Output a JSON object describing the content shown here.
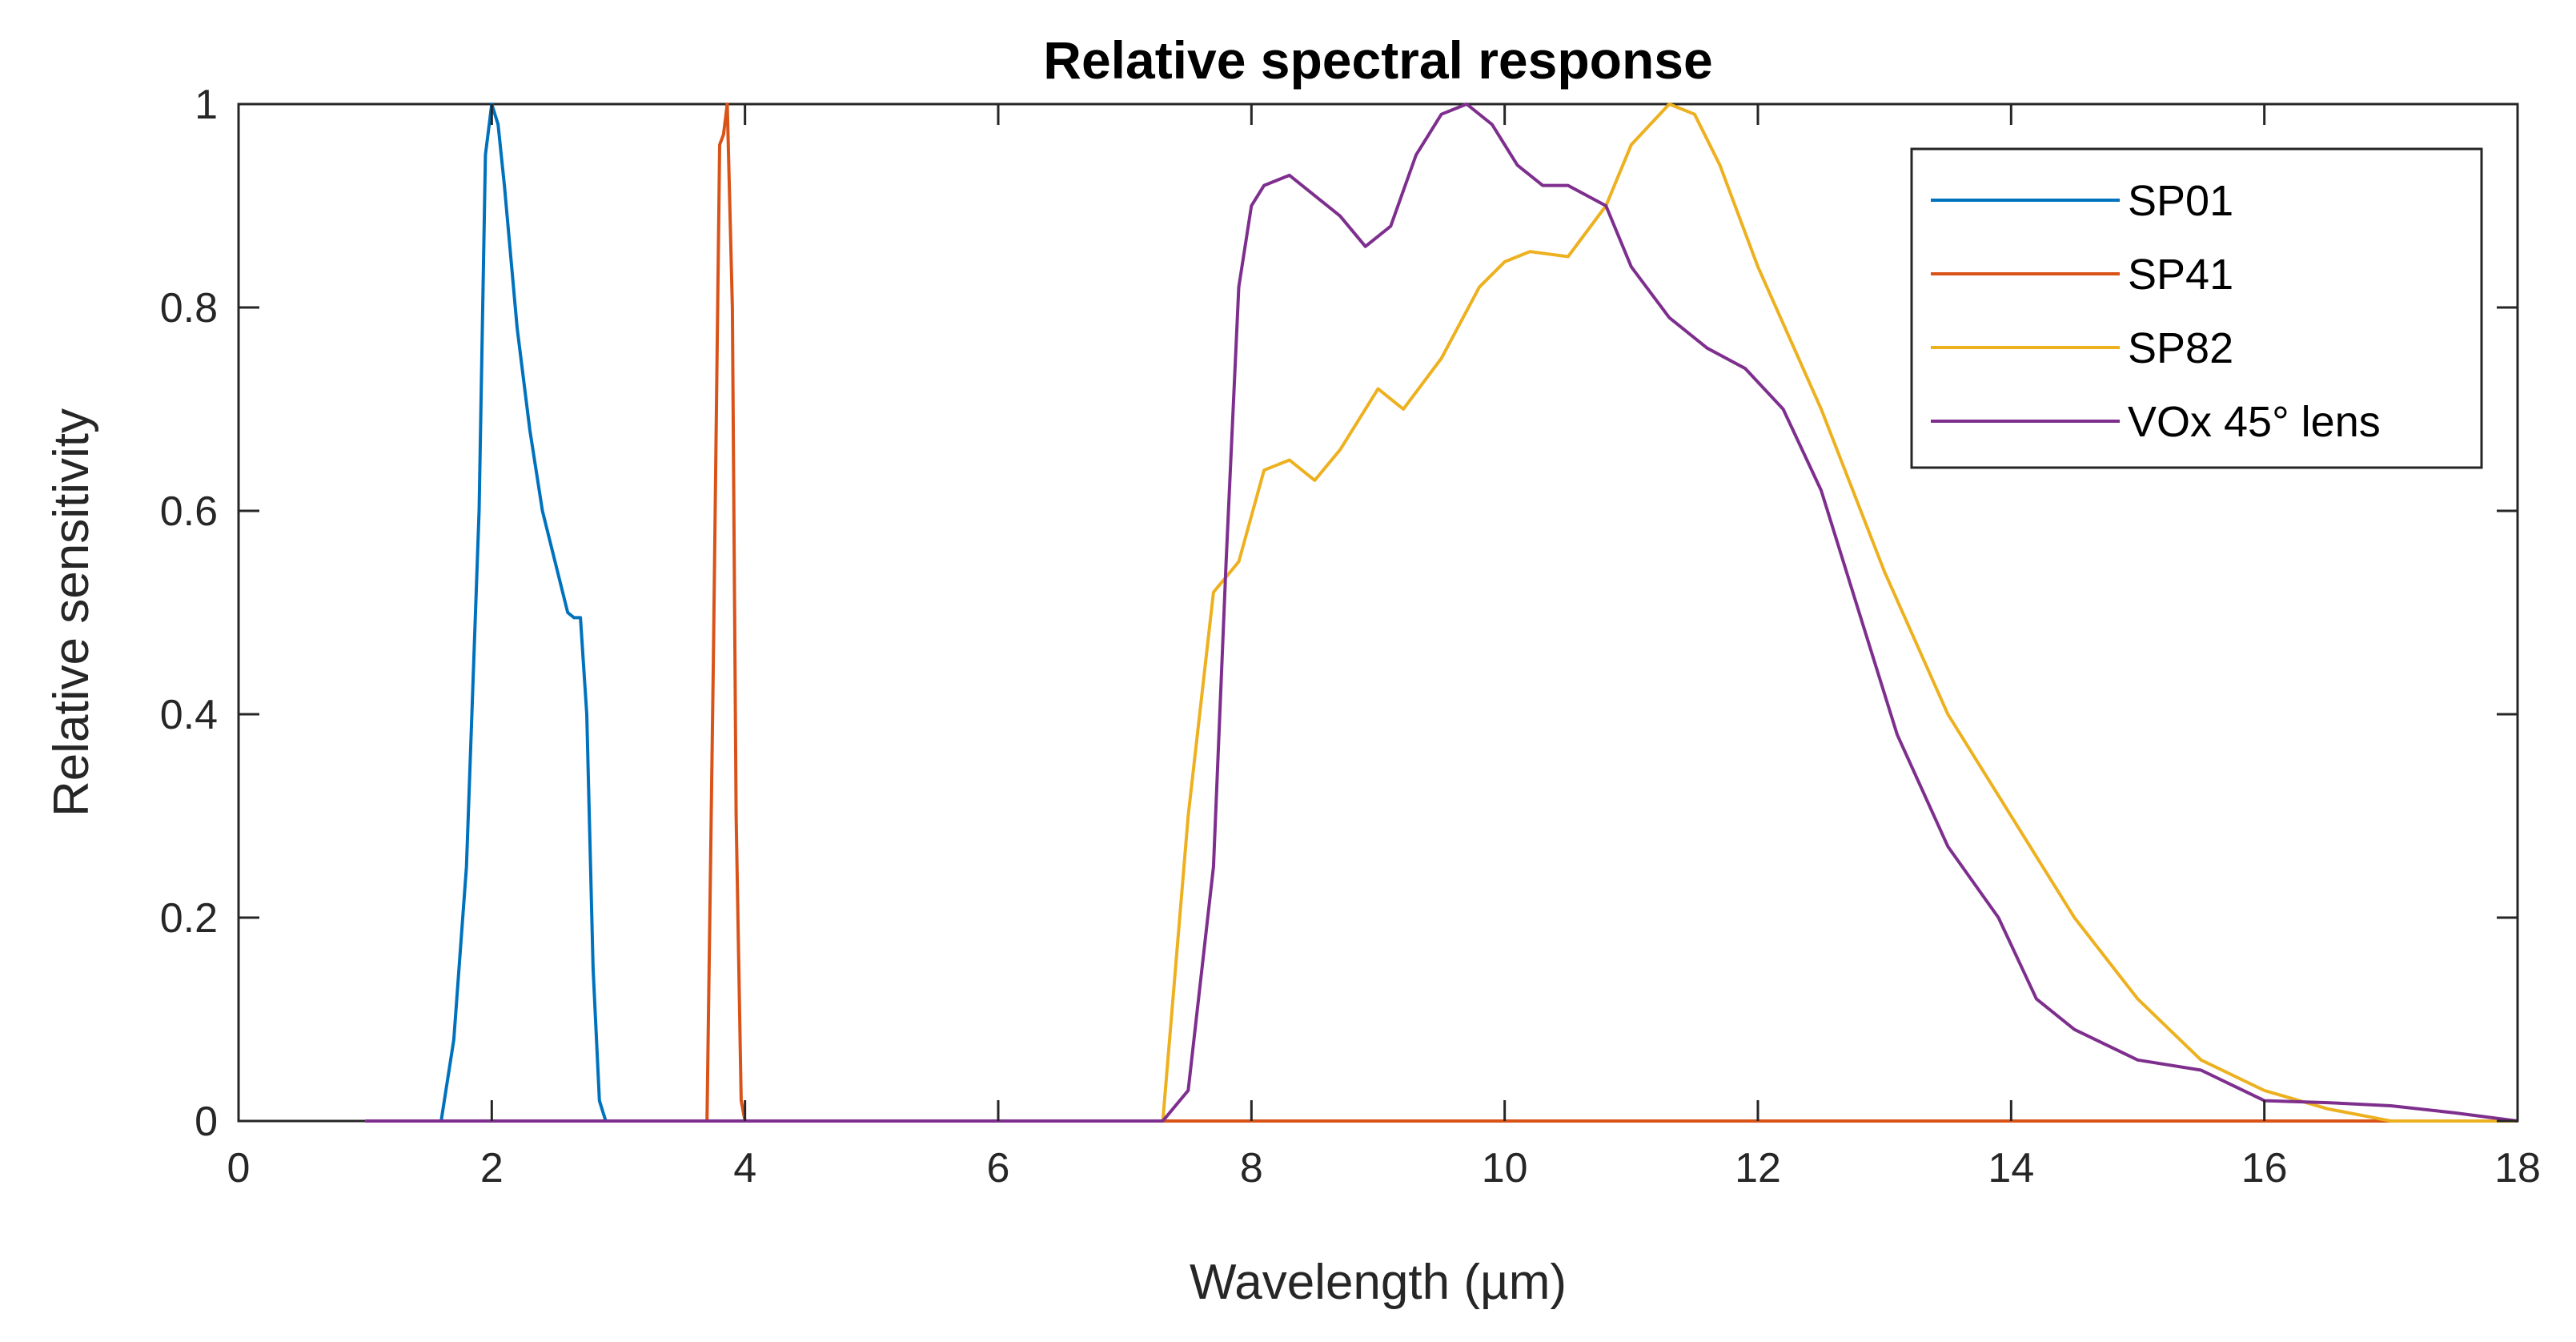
{
  "chart_data": {
    "type": "line",
    "title": "Relative spectral response",
    "xlabel": "Wavelength (µm)",
    "ylabel": "Relative sensitivity",
    "xlim": [
      0,
      18
    ],
    "ylim": [
      0,
      1
    ],
    "xticks": [
      0,
      2,
      4,
      6,
      8,
      10,
      12,
      14,
      16,
      18
    ],
    "yticks": [
      0,
      0.2,
      0.4,
      0.6,
      0.8,
      1
    ],
    "xtick_labels": [
      "0",
      "2",
      "4",
      "6",
      "8",
      "10",
      "12",
      "14",
      "16",
      "18"
    ],
    "ytick_labels": [
      "0",
      "0.2",
      "0.4",
      "0.6",
      "0.8",
      "1"
    ],
    "grid": false,
    "legend_position": "top-right",
    "series": [
      {
        "name": "SP01",
        "color": "#0072BD",
        "x": [
          1.0,
          1.6,
          1.7,
          1.8,
          1.9,
          1.95,
          2.0,
          2.05,
          2.1,
          2.2,
          2.3,
          2.4,
          2.5,
          2.6,
          2.65,
          2.7,
          2.75,
          2.8,
          2.85,
          2.9,
          3.0
        ],
        "y": [
          0,
          0,
          0.08,
          0.25,
          0.6,
          0.95,
          1.0,
          0.98,
          0.92,
          0.78,
          0.68,
          0.6,
          0.55,
          0.5,
          0.495,
          0.495,
          0.4,
          0.15,
          0.02,
          0.0,
          0
        ]
      },
      {
        "name": "SP41",
        "color": "#D95319",
        "x": [
          1.0,
          3.7,
          3.75,
          3.8,
          3.83,
          3.86,
          3.9,
          3.93,
          3.97,
          4.0,
          18.0
        ],
        "y": [
          0,
          0,
          0.45,
          0.96,
          0.97,
          1.0,
          0.8,
          0.3,
          0.02,
          0,
          0
        ]
      },
      {
        "name": "SP82",
        "color": "#EDB120",
        "x": [
          1.0,
          7.3,
          7.5,
          7.7,
          7.9,
          8.1,
          8.3,
          8.5,
          8.7,
          9.0,
          9.2,
          9.5,
          9.8,
          10.0,
          10.2,
          10.5,
          10.8,
          11.0,
          11.3,
          11.5,
          11.7,
          12.0,
          12.5,
          13.0,
          13.5,
          14.0,
          14.5,
          15.0,
          15.5,
          16.0,
          16.5,
          17.0,
          18.0
        ],
        "y": [
          0,
          0,
          0.3,
          0.52,
          0.55,
          0.64,
          0.65,
          0.63,
          0.66,
          0.72,
          0.7,
          0.75,
          0.82,
          0.845,
          0.855,
          0.85,
          0.9,
          0.96,
          1.0,
          0.99,
          0.94,
          0.84,
          0.7,
          0.54,
          0.4,
          0.3,
          0.2,
          0.12,
          0.06,
          0.03,
          0.012,
          0,
          0
        ]
      },
      {
        "name": "VOx 45° lens",
        "color": "#7E2F8E",
        "x": [
          1.0,
          7.3,
          7.5,
          7.7,
          7.8,
          7.9,
          8.0,
          8.1,
          8.3,
          8.5,
          8.7,
          8.9,
          9.1,
          9.3,
          9.5,
          9.7,
          9.9,
          10.1,
          10.3,
          10.5,
          10.8,
          11.0,
          11.3,
          11.6,
          11.9,
          12.2,
          12.5,
          12.8,
          13.1,
          13.5,
          13.9,
          14.2,
          14.5,
          15.0,
          15.5,
          16.0,
          16.5,
          17.0,
          17.5,
          18.0
        ],
        "y": [
          0,
          0,
          0.03,
          0.25,
          0.55,
          0.82,
          0.9,
          0.92,
          0.93,
          0.91,
          0.89,
          0.86,
          0.88,
          0.95,
          0.99,
          1.0,
          0.98,
          0.94,
          0.92,
          0.92,
          0.9,
          0.84,
          0.79,
          0.76,
          0.74,
          0.7,
          0.62,
          0.5,
          0.38,
          0.27,
          0.2,
          0.12,
          0.09,
          0.06,
          0.05,
          0.02,
          0.018,
          0.015,
          0.008,
          0
        ]
      }
    ]
  }
}
